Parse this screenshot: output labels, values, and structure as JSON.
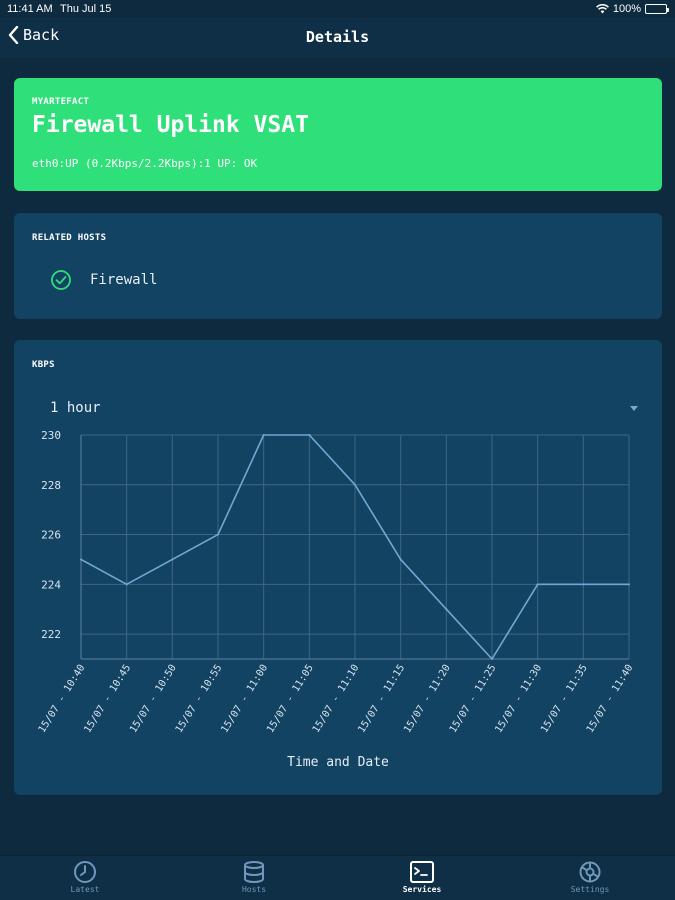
{
  "status_bar": {
    "time": "11:41 AM",
    "date": "Thu Jul 15",
    "battery": "100%"
  },
  "nav": {
    "back_label": "Back",
    "title": "Details"
  },
  "hero": {
    "kicker": "MYARTEFACT",
    "title": "Firewall Uplink VSAT",
    "status": "eth0:UP (0.2Kbps/2.2Kbps):1 UP: OK",
    "color": "#2fe07a"
  },
  "related_hosts": {
    "label": "RELATED HOSTS",
    "items": [
      {
        "name": "Firewall",
        "status_icon": "check-circle-icon"
      }
    ]
  },
  "chart_section": {
    "label": "KBPS",
    "range_selected": "1 hour"
  },
  "chart_data": {
    "type": "line",
    "categories": [
      "15/07 - 10:40",
      "15/07 - 10:45",
      "15/07 - 10:50",
      "15/07 - 10:55",
      "15/07 - 11:00",
      "15/07 - 11:05",
      "15/07 - 11:10",
      "15/07 - 11:15",
      "15/07 - 11:20",
      "15/07 - 11:25",
      "15/07 - 11:30",
      "15/07 - 11:35",
      "15/07 - 11:40"
    ],
    "values": [
      225,
      224,
      225,
      226,
      230,
      230,
      228,
      225,
      223,
      221,
      224,
      224,
      224
    ],
    "yticks": [
      222,
      224,
      226,
      228,
      230
    ],
    "ylim": [
      221,
      230
    ],
    "xlabel": "Time and Date",
    "ylabel": "",
    "grid": true,
    "line_color": "#6fa8d0"
  },
  "tabs": [
    {
      "label": "Latest",
      "icon": "clock-icon",
      "active": false
    },
    {
      "label": "Hosts",
      "icon": "database-icon",
      "active": false
    },
    {
      "label": "Services",
      "icon": "terminal-icon",
      "active": true
    },
    {
      "label": "Settings",
      "icon": "gear-icon",
      "active": false
    }
  ]
}
